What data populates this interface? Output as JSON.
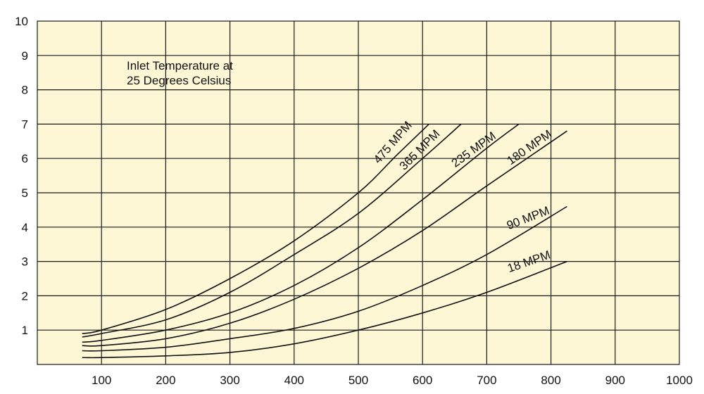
{
  "chart_data": {
    "type": "line",
    "title": "",
    "xlabel": "",
    "ylabel": "",
    "xlim": [
      0,
      1000
    ],
    "ylim": [
      0,
      10
    ],
    "x_ticks": [
      100,
      200,
      300,
      400,
      500,
      600,
      700,
      800,
      900,
      1000
    ],
    "y_ticks": [
      1,
      2,
      3,
      4,
      5,
      6,
      7,
      8,
      9,
      10
    ],
    "grid": true,
    "legend": "none",
    "background_color": "#fdf7d6",
    "line_color": "#111111",
    "annotation": [
      "Inlet Temperature at",
      "25 Degrees Celsius"
    ],
    "series": [
      {
        "name": "475 MPM",
        "points": [
          [
            70,
            0.9
          ],
          [
            100,
            1.0
          ],
          [
            200,
            1.6
          ],
          [
            300,
            2.5
          ],
          [
            400,
            3.6
          ],
          [
            500,
            5.0
          ],
          [
            560,
            6.1
          ],
          [
            610,
            7.0
          ]
        ]
      },
      {
        "name": "365 MPM",
        "points": [
          [
            70,
            0.8
          ],
          [
            100,
            0.9
          ],
          [
            200,
            1.3
          ],
          [
            300,
            2.1
          ],
          [
            400,
            3.2
          ],
          [
            500,
            4.4
          ],
          [
            600,
            6.0
          ],
          [
            660,
            7.0
          ]
        ]
      },
      {
        "name": "235 MPM",
        "points": [
          [
            70,
            0.65
          ],
          [
            100,
            0.7
          ],
          [
            200,
            1.0
          ],
          [
            300,
            1.5
          ],
          [
            400,
            2.3
          ],
          [
            500,
            3.4
          ],
          [
            600,
            4.8
          ],
          [
            700,
            6.3
          ],
          [
            750,
            7.0
          ]
        ]
      },
      {
        "name": "180 MPM",
        "points": [
          [
            70,
            0.55
          ],
          [
            100,
            0.55
          ],
          [
            200,
            0.75
          ],
          [
            300,
            1.2
          ],
          [
            400,
            1.9
          ],
          [
            500,
            2.8
          ],
          [
            600,
            3.9
          ],
          [
            700,
            5.2
          ],
          [
            825,
            6.8
          ]
        ]
      },
      {
        "name": "90 MPM",
        "points": [
          [
            70,
            0.4
          ],
          [
            100,
            0.4
          ],
          [
            200,
            0.5
          ],
          [
            300,
            0.75
          ],
          [
            400,
            1.05
          ],
          [
            500,
            1.55
          ],
          [
            600,
            2.3
          ],
          [
            700,
            3.2
          ],
          [
            825,
            4.6
          ]
        ]
      },
      {
        "name": "18 MPM",
        "points": [
          [
            70,
            0.2
          ],
          [
            100,
            0.2
          ],
          [
            200,
            0.25
          ],
          [
            300,
            0.35
          ],
          [
            400,
            0.6
          ],
          [
            500,
            1.0
          ],
          [
            600,
            1.5
          ],
          [
            700,
            2.1
          ],
          [
            825,
            3.0
          ]
        ]
      }
    ]
  }
}
